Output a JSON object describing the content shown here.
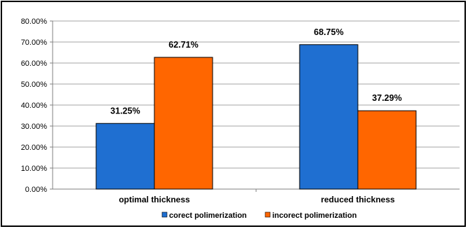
{
  "chart_data": {
    "type": "bar",
    "categories": [
      "optimal thickness",
      "reduced thickness"
    ],
    "series": [
      {
        "name": "corect polimerization",
        "values": [
          31.25,
          68.75
        ],
        "labels": [
          "31.25%",
          "68.75%"
        ],
        "color": "#1f6fd1"
      },
      {
        "name": "incorect polimerization",
        "values": [
          62.71,
          37.29
        ],
        "labels": [
          "62.71%",
          "37.29%"
        ],
        "color": "#ff6600"
      }
    ],
    "ylim": [
      0,
      80
    ],
    "yticks": [
      0,
      10,
      20,
      30,
      40,
      50,
      60,
      70,
      80
    ],
    "ytick_labels": [
      "0.00%",
      "10.00%",
      "20.00%",
      "30.00%",
      "40.00%",
      "50.00%",
      "60.00%",
      "70.00%",
      "80.00%"
    ],
    "grid": true,
    "legend_position": "bottom"
  }
}
